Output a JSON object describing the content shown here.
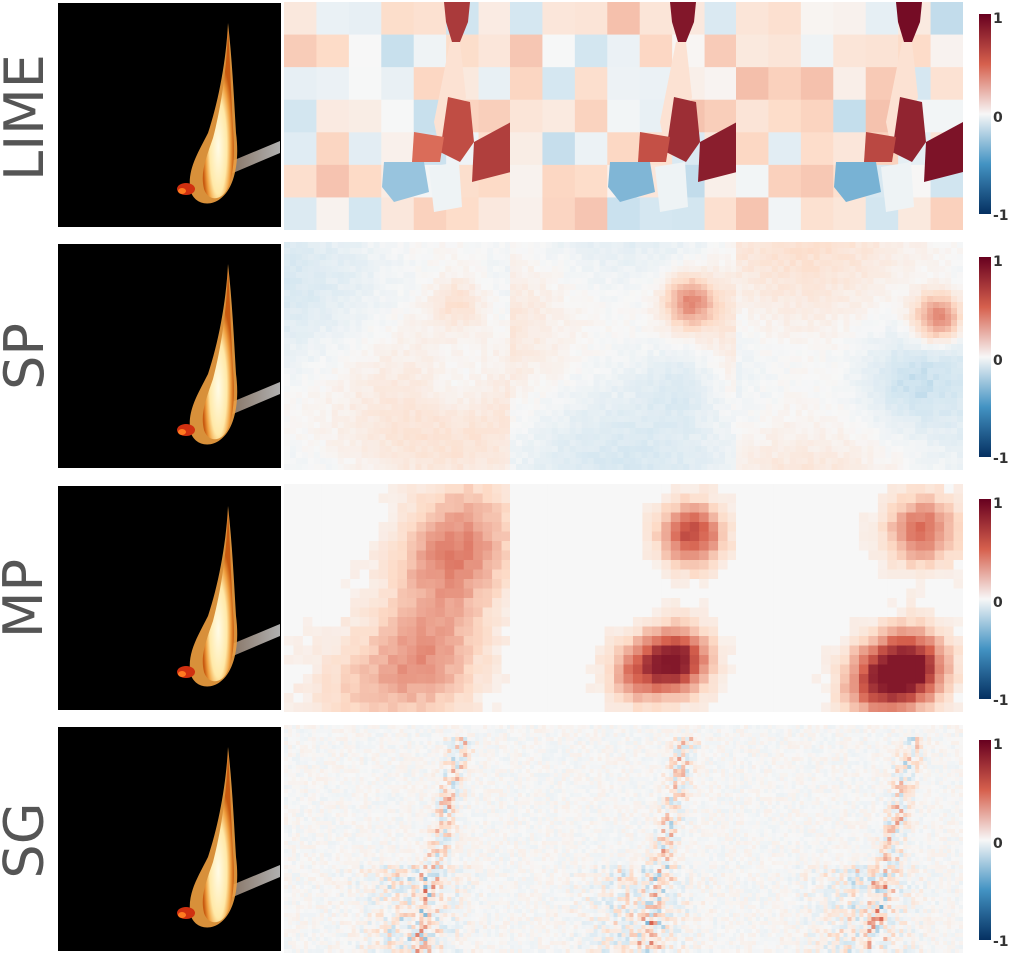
{
  "rows": [
    {
      "label": "LIME"
    },
    {
      "label": "SP"
    },
    {
      "label": "MP"
    },
    {
      "label": "SG"
    }
  ],
  "colorbar": {
    "ticks": [
      "1",
      "0",
      "-1"
    ],
    "colors": {
      "max": "#67001f",
      "mid": "#f7f7f7",
      "min": "#053061"
    }
  },
  "palette": {
    "background": "#000000",
    "flame_core": "#fffbe6",
    "flame_edge": "#f0a040",
    "ember": "#d03010",
    "positive": "#d6604d",
    "negative": "#4393c3"
  }
}
